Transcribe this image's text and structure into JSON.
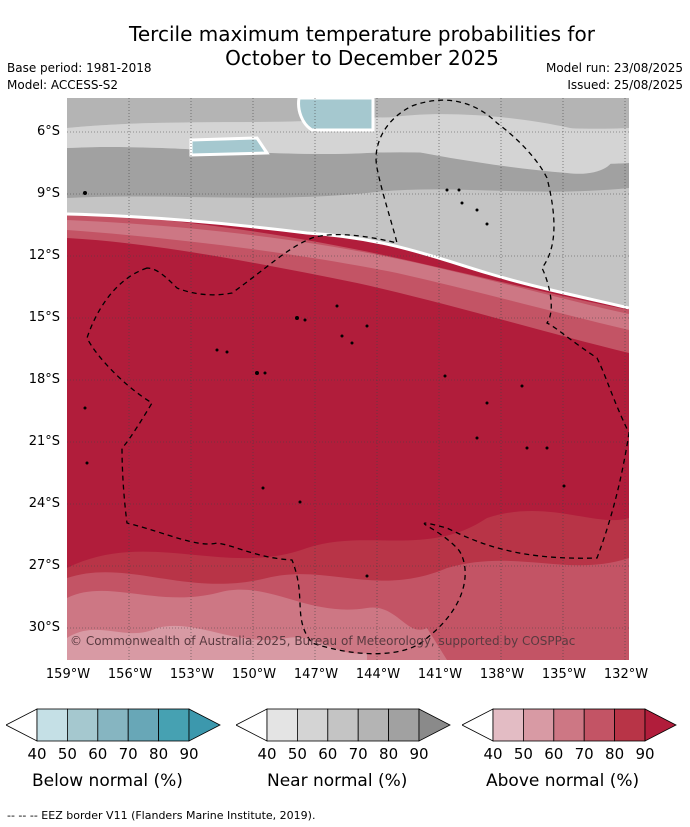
{
  "header": {
    "title_line1": "Tercile maximum temperature probabilities for",
    "title_line2": "October to December 2025",
    "base_period": "Base period: 1981-2018",
    "model": "Model: ACCESS-S2",
    "model_run": "Model run: 23/08/2025",
    "issued": "Issued: 25/08/2025"
  },
  "map": {
    "lat_labels": [
      "6°S",
      "9°S",
      "12°S",
      "15°S",
      "18°S",
      "21°S",
      "24°S",
      "27°S",
      "30°S"
    ],
    "lon_labels": [
      "159°W",
      "156°W",
      "153°W",
      "150°W",
      "147°W",
      "144°W",
      "141°W",
      "138°W",
      "135°W",
      "132°W"
    ],
    "copyright": "© Commonwealth of Australia 2025, Bureau of Meteorology, supported by COSPPac"
  },
  "colorbars": {
    "below": {
      "title": "Below normal (%)",
      "ticks": [
        "40",
        "50",
        "60",
        "70",
        "80",
        "90"
      ],
      "colors": [
        "#c5e0e6",
        "#a5c8cf",
        "#86b5c1",
        "#68a7b7",
        "#46a1b2",
        "#3c98ad"
      ]
    },
    "near": {
      "title": "Near normal (%)",
      "ticks": [
        "40",
        "50",
        "60",
        "70",
        "80",
        "90"
      ],
      "colors": [
        "#e4e4e4",
        "#d4d4d4",
        "#c4c4c4",
        "#b4b4b4",
        "#a1a1a1",
        "#8a8a8a"
      ]
    },
    "above": {
      "title": "Above normal (%)",
      "ticks": [
        "40",
        "50",
        "60",
        "70",
        "80",
        "90"
      ],
      "colors": [
        "#e3bcc4",
        "#d89aa4",
        "#cd7784",
        "#c35465",
        "#b83447",
        "#b11d3b"
      ]
    }
  },
  "footer": {
    "eez_legend": "--  --  -- EEZ border V11 (Flanders Marine Institute, 2019)."
  }
}
